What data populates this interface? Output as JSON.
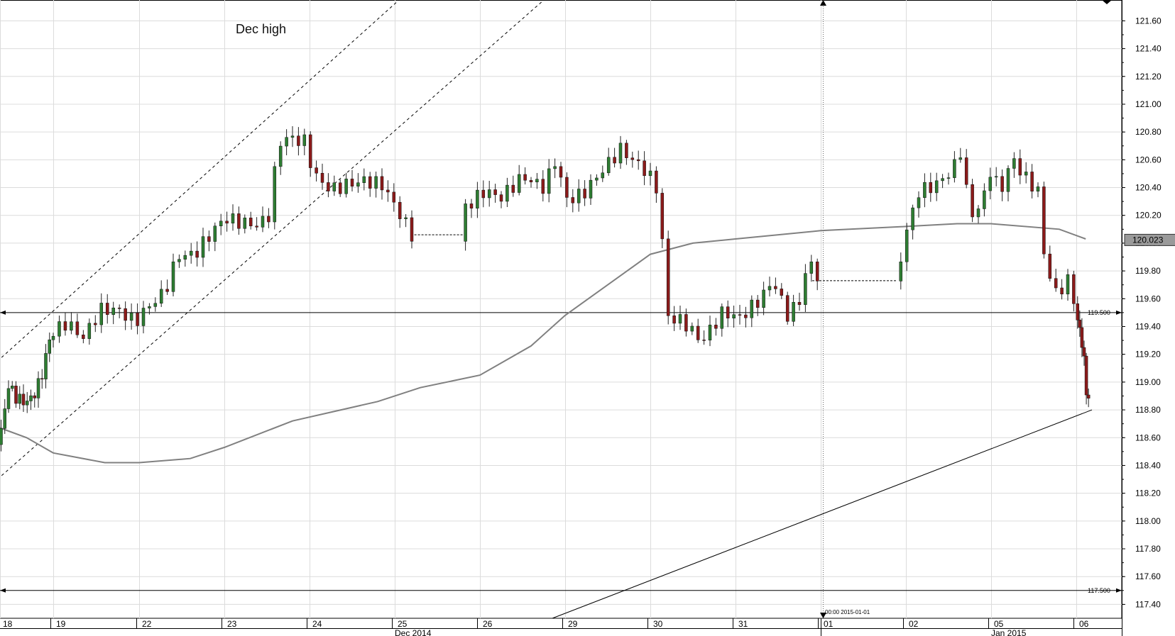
{
  "chart_data": {
    "type": "candlestick",
    "title": "",
    "annotation": "Dec high",
    "price_axis": {
      "min": 117.3,
      "max": 121.75,
      "ticks": [
        "121.60",
        "121.40",
        "121.20",
        "121.00",
        "120.80",
        "120.60",
        "120.40",
        "120.20",
        "120.00",
        "119.80",
        "119.60",
        "119.40",
        "119.20",
        "119.00",
        "118.80",
        "118.60",
        "118.40",
        "118.20",
        "118.00",
        "117.80",
        "117.60",
        "117.40"
      ]
    },
    "current_price": "120.023",
    "levels": [
      {
        "label": "119.500",
        "value": 119.5
      },
      {
        "label": "117.500",
        "value": 117.5
      }
    ],
    "time_axis": {
      "day_labels": [
        "18",
        "19",
        "22",
        "23",
        "24",
        "25",
        "26",
        "29",
        "30",
        "31",
        "01",
        "02",
        "05",
        "06"
      ],
      "month_labels": [
        {
          "label": "Dec 2014",
          "after_day": "25"
        },
        {
          "label": "Jan 2015",
          "after_day": "05"
        }
      ],
      "session_marker": "00:00 2015-01-01"
    },
    "grid": true,
    "colors": {
      "up": "#2e7d32",
      "down": "#8b1a1a",
      "wick": "#222222",
      "ma": "#808080"
    },
    "moving_average": [
      {
        "t": 0,
        "v": 118.67
      },
      {
        "t": 0.5,
        "v": 118.6
      },
      {
        "t": 1,
        "v": 118.49
      },
      {
        "t": 1.6,
        "v": 118.42
      },
      {
        "t": 2,
        "v": 118.42
      },
      {
        "t": 2.6,
        "v": 118.45
      },
      {
        "t": 3,
        "v": 118.53
      },
      {
        "t": 3.8,
        "v": 118.72
      },
      {
        "t": 4.3,
        "v": 118.79
      },
      {
        "t": 4.8,
        "v": 118.86
      },
      {
        "t": 5.3,
        "v": 118.96
      },
      {
        "t": 6,
        "v": 119.05
      },
      {
        "t": 6.6,
        "v": 119.26
      },
      {
        "t": 7,
        "v": 119.48
      },
      {
        "t": 7.5,
        "v": 119.7
      },
      {
        "t": 8,
        "v": 119.92
      },
      {
        "t": 8.5,
        "v": 120.0
      },
      {
        "t": 9,
        "v": 120.03
      },
      {
        "t": 10,
        "v": 120.09
      },
      {
        "t": 11,
        "v": 120.12
      },
      {
        "t": 11.6,
        "v": 120.14
      },
      {
        "t": 12,
        "v": 120.14
      },
      {
        "t": 12.8,
        "v": 120.1
      },
      {
        "t": 13.3,
        "v": 120.03
      }
    ],
    "channel_lines": [
      {
        "from": {
          "t": -0.05,
          "v": 119.15
        },
        "to": {
          "t": 5.05,
          "v": 121.75
        }
      },
      {
        "from": {
          "t": -0.05,
          "v": 118.3
        },
        "to": {
          "t": 6.75,
          "v": 121.75
        }
      },
      {
        "from": {
          "t": 6.85,
          "v": 117.3
        },
        "to": {
          "t": 13.5,
          "v": 118.8
        }
      }
    ],
    "gap_lines": [
      {
        "from": {
          "t": 5.23,
          "v": 120.06
        },
        "to": {
          "t": 5.8,
          "v": 120.06
        }
      },
      {
        "from": {
          "t": 9.9,
          "v": 119.73
        },
        "to": {
          "t": 10.9,
          "v": 119.73
        }
      }
    ],
    "ohlc": []
  }
}
